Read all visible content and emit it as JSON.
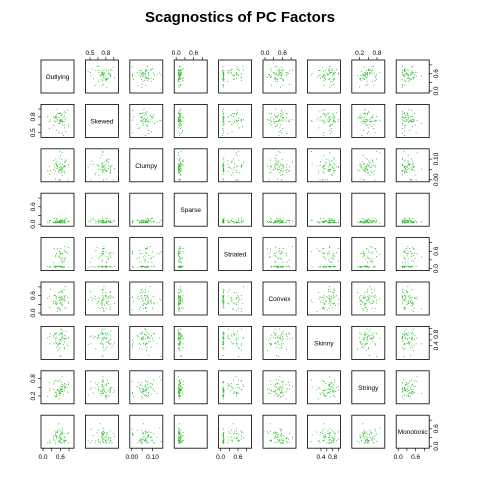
{
  "chart_data": {
    "type": "scatter",
    "subtype": "scatterplot-matrix",
    "title": "Scagnostics of PC Factors",
    "point_color": "#22bb22",
    "variables": [
      "Outlying",
      "Skewed",
      "Clumpy",
      "Sparse",
      "Striated",
      "Convex",
      "Skinny",
      "Stringy",
      "Monotonic"
    ],
    "ranges": [
      [
        0.0,
        1.0
      ],
      [
        0.45,
        1.0
      ],
      [
        0.0,
        0.14
      ],
      [
        0.0,
        1.0
      ],
      [
        0.0,
        1.0
      ],
      [
        0.0,
        1.0
      ],
      [
        0.0,
        1.0
      ],
      [
        0.0,
        1.0
      ],
      [
        0.0,
        1.0
      ]
    ],
    "ticks": [
      [
        "0.0",
        "0.6"
      ],
      [
        "0.5",
        "0.8"
      ],
      [
        "0.00",
        "0.10"
      ],
      [
        "0.0",
        "0.6"
      ],
      [
        "0.0",
        "0.6"
      ],
      [
        "0.0",
        "0.6"
      ],
      [
        "0.4",
        "0.8"
      ],
      [
        "0.2",
        "0.8"
      ],
      [
        "0.0",
        "0.6"
      ]
    ],
    "tick_values": [
      [
        0.0,
        0.6
      ],
      [
        0.5,
        0.8
      ],
      [
        0.0,
        0.1
      ],
      [
        0.0,
        0.6
      ],
      [
        0.0,
        0.6
      ],
      [
        0.0,
        0.6
      ],
      [
        0.4,
        0.8
      ],
      [
        0.2,
        0.8
      ],
      [
        0.0,
        0.6
      ]
    ],
    "n_points": 60,
    "seed": 17
  }
}
